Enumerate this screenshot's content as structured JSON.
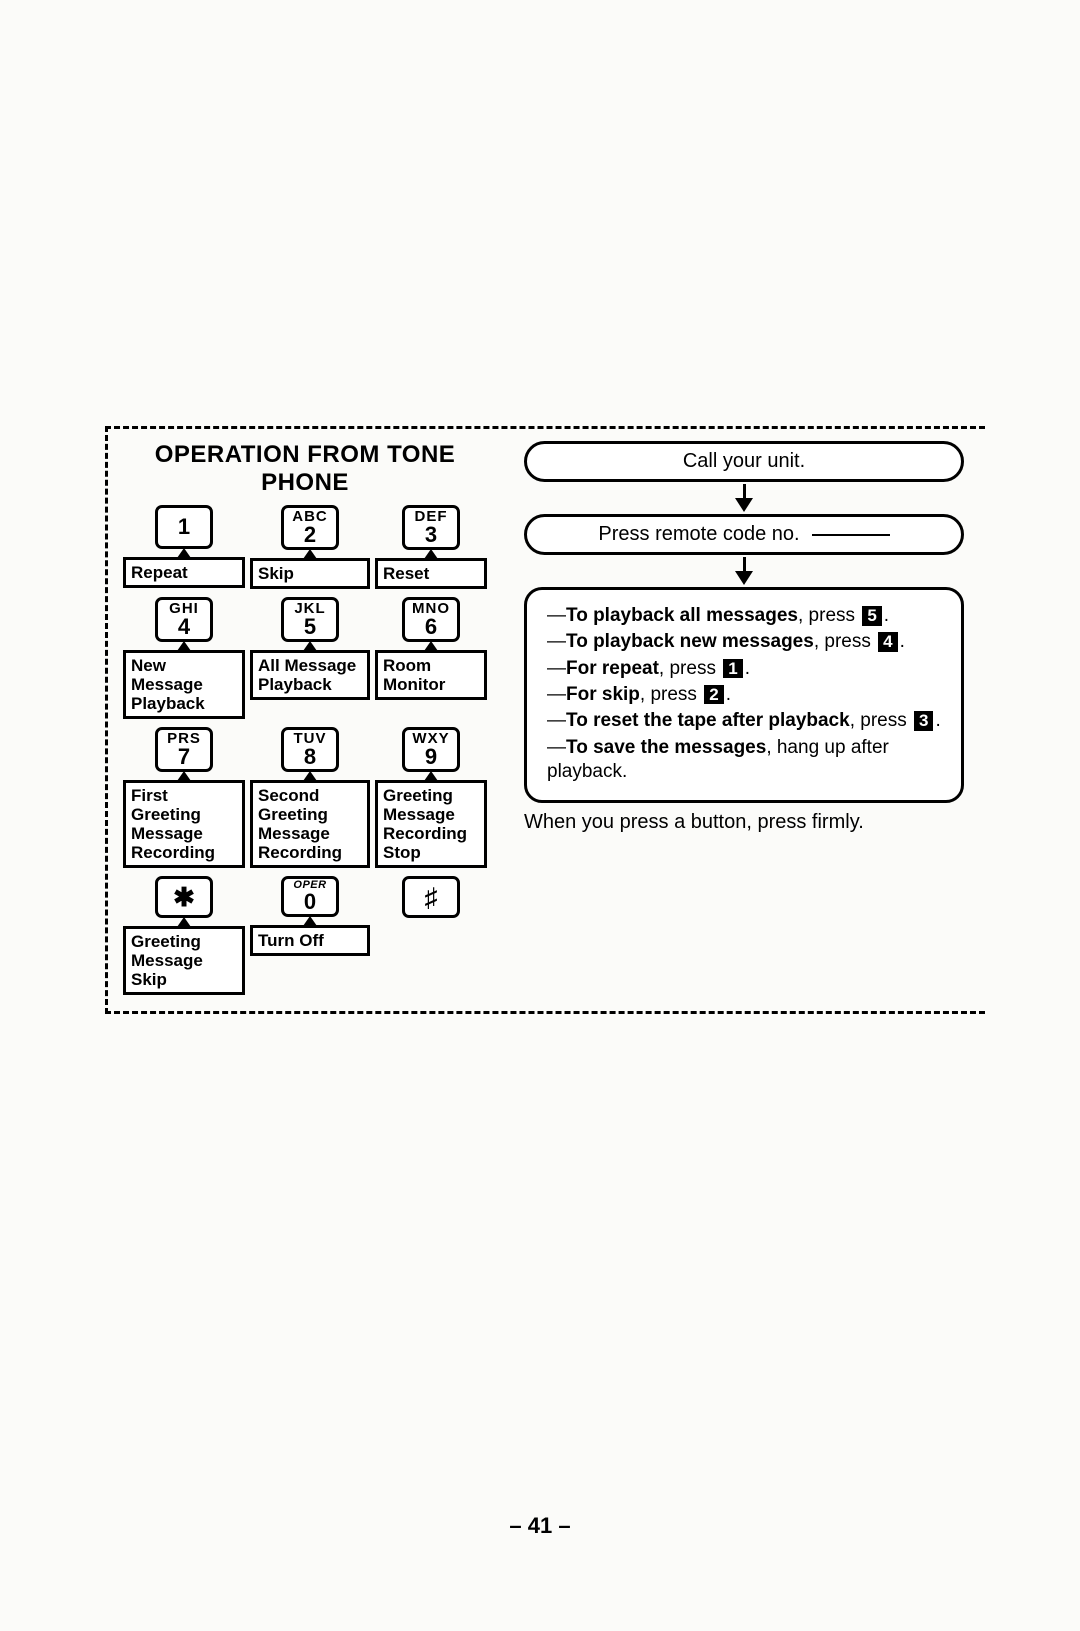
{
  "title": "OPERATION FROM TONE PHONE",
  "keys": [
    {
      "letters": "",
      "digit": "1",
      "func": "Repeat",
      "funcClass": "wide",
      "single": true
    },
    {
      "letters": "ABC",
      "digit": "2",
      "func": "Skip",
      "funcClass": "med"
    },
    {
      "letters": "DEF",
      "digit": "3",
      "func": "Reset",
      "funcClass": "nar"
    },
    {
      "letters": "GHI",
      "digit": "4",
      "func": "New Message Playback",
      "funcClass": "wide mid"
    },
    {
      "letters": "JKL",
      "digit": "5",
      "func": "All Message Playback",
      "funcClass": "med mid"
    },
    {
      "letters": "MNO",
      "digit": "6",
      "func": "Room Monitor",
      "funcClass": "nar mid"
    },
    {
      "letters": "PRS",
      "digit": "7",
      "func": "First Greeting Message Recording",
      "funcClass": "wide tall"
    },
    {
      "letters": "TUV",
      "digit": "8",
      "func": "Second Greeting Message Recording",
      "funcClass": "med tall"
    },
    {
      "letters": "WXY",
      "digit": "9",
      "func": "Greeting Message Recording Stop",
      "funcClass": "nar tall"
    },
    {
      "sym": "✱",
      "func": "Greeting Message Skip",
      "funcClass": "wide mid"
    },
    {
      "letters": "OPER",
      "oper": true,
      "digit": "0",
      "func": "Turn Off",
      "funcClass": "med"
    },
    {
      "sym": "♯",
      "func": "",
      "funcClass": "nar",
      "noLabel": true
    }
  ],
  "step1": "Call  your  unit.",
  "step2": "Press remote code no.",
  "instructions": [
    {
      "bold": "To playback all messages",
      "tail": ", press ",
      "key": "5",
      "end": "."
    },
    {
      "bold": "To playback new messages",
      "tail": ", press ",
      "key": "4",
      "end": "."
    },
    {
      "bold": "For repeat",
      "tail": ", press ",
      "key": "1",
      "end": "."
    },
    {
      "bold": "For skip",
      "tail": ", press ",
      "key": "2",
      "end": "."
    },
    {
      "bold": "To reset the tape after playback",
      "tail": ", press ",
      "key": "3",
      "end": "."
    },
    {
      "bold": "To save the messages",
      "tail": ", hang up after playback.",
      "key": "",
      "end": ""
    }
  ],
  "footerNote": "When you press a button, press firmly.",
  "pageNum": "– 41 –"
}
